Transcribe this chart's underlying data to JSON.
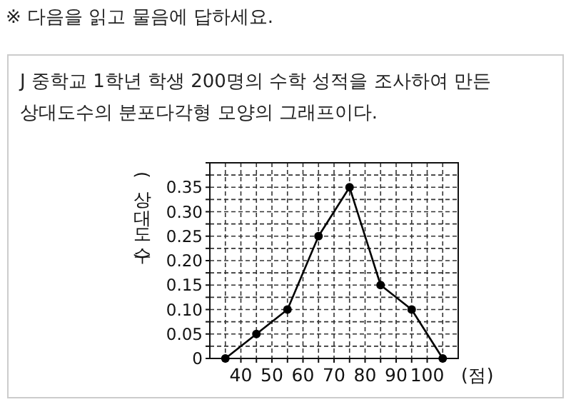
{
  "chart_data": {
    "type": "line",
    "title": "※ 다음을 읽고 물음에 답하세요.",
    "subtitle": "J 중학교 1학년 학생 200명의 수학 성적을 조사하여 만든 상대도수의 분포다각형 모양의 그래프이다.",
    "ylabel": "(상대도수)",
    "xlabel": "(점)",
    "x": [
      35,
      45,
      55,
      65,
      75,
      85,
      95,
      105
    ],
    "series": [
      {
        "color": "#000000",
        "values": [
          0,
          0.05,
          0.1,
          0.25,
          0.35,
          0.15,
          0.1,
          0
        ]
      }
    ],
    "xlim": [
      30,
      110
    ],
    "ylim": [
      0,
      0.4
    ],
    "xticks": [
      {
        "value": 35,
        "label": null
      },
      40,
      {
        "value": 45,
        "label": null
      },
      50,
      {
        "value": 55,
        "label": null
      },
      60,
      {
        "value": 65,
        "label": null
      },
      70,
      {
        "value": 75,
        "label": null
      },
      80,
      {
        "value": 85,
        "label": null
      },
      90,
      {
        "value": 95,
        "label": null
      },
      100,
      {
        "value": 105,
        "label": null
      }
    ],
    "yticks": [
      0,
      {
        "value": 0.025,
        "label": null
      },
      {
        "value": 0.05,
        "label": "0.05"
      },
      {
        "value": 0.075,
        "label": null
      },
      {
        "value": 0.1,
        "label": "0.10"
      },
      {
        "value": 0.125,
        "label": null
      },
      {
        "value": 0.15,
        "label": "0.15"
      },
      {
        "value": 0.175,
        "label": null
      },
      {
        "value": 0.2,
        "label": "0.20"
      },
      {
        "value": 0.225,
        "label": null
      },
      {
        "value": 0.25,
        "label": "0.25"
      },
      {
        "value": 0.275,
        "label": null
      },
      {
        "value": 0.3,
        "label": "0.30"
      },
      {
        "value": 0.325,
        "label": null
      },
      {
        "value": 0.35,
        "label": "0.35"
      },
      {
        "value": 0.375,
        "label": null
      },
      {
        "value": 0.4,
        "label": null
      }
    ],
    "grid": true,
    "marker": "circle",
    "line_style": "solid"
  }
}
